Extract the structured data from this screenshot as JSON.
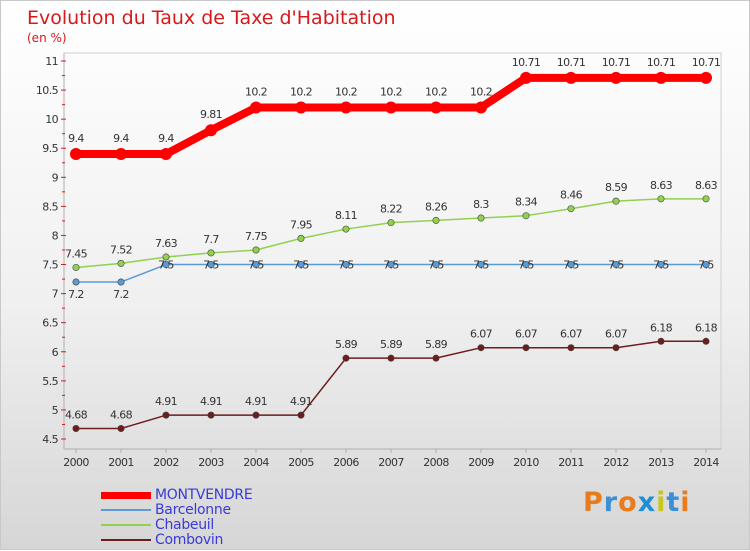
{
  "title": "Evolution du Taux de Taxe d'Habitation",
  "unit": "(en %)",
  "logo": {
    "text": "Proxiti",
    "colors": [
      "#e87b1e",
      "#3a8fd6",
      "#e87b1e",
      "#1e8fd6",
      "#c7c71e",
      "#3a8fd6",
      "#e87b1e"
    ]
  },
  "chart_data": {
    "type": "line",
    "x": [
      "2000",
      "2001",
      "2002",
      "2003",
      "2004",
      "2005",
      "2006",
      "2007",
      "2008",
      "2009",
      "2010",
      "2011",
      "2012",
      "2013",
      "2014"
    ],
    "ylim": [
      4.5,
      11
    ],
    "yticks": [
      "4.5",
      "5",
      "5.5",
      "6",
      "6.5",
      "7",
      "7.5",
      "8",
      "8.5",
      "9",
      "9.5",
      "10",
      "10.5",
      "11"
    ],
    "legend_position": "bottom-left",
    "series": [
      {
        "name": "MONTVENDRE",
        "color": "#ff0000",
        "values": [
          9.4,
          9.4,
          9.4,
          9.81,
          10.2,
          10.2,
          10.2,
          10.2,
          10.2,
          10.2,
          10.71,
          10.71,
          10.71,
          10.71,
          10.71
        ],
        "labels": [
          "9.4",
          "9.4",
          "9.4",
          "9.81",
          "10.2",
          "10.2",
          "10.2",
          "10.2",
          "10.2",
          "10.2",
          "10.71",
          "10.71",
          "10.71",
          "10.71",
          "10.71"
        ]
      },
      {
        "name": "Barcelonne",
        "color": "#5b9bd5",
        "values": [
          7.2,
          7.2,
          7.5,
          7.5,
          7.5,
          7.5,
          7.5,
          7.5,
          7.5,
          7.5,
          7.5,
          7.5,
          7.5,
          7.5,
          7.5
        ],
        "labels": [
          "7.2",
          "7.2",
          "7.5",
          "7.5",
          "7.5",
          "7.5",
          "7.5",
          "7.5",
          "7.5",
          "7.5",
          "7.5",
          "7.5",
          "7.5",
          "7.5",
          "7.5"
        ]
      },
      {
        "name": "Chabeuil",
        "color": "#92d050",
        "values": [
          7.45,
          7.52,
          7.63,
          7.7,
          7.75,
          7.95,
          8.11,
          8.22,
          8.26,
          8.3,
          8.34,
          8.46,
          8.59,
          8.63,
          8.63
        ],
        "labels": [
          "7.45",
          "7.52",
          "7.63",
          "7.7",
          "7.75",
          "7.95",
          "8.11",
          "8.22",
          "8.26",
          "8.3",
          "8.34",
          "8.46",
          "8.59",
          "8.63",
          "8.63"
        ]
      },
      {
        "name": "Combovin",
        "color": "#6e1c1c",
        "values": [
          4.68,
          4.68,
          4.91,
          4.91,
          4.91,
          4.91,
          5.89,
          5.89,
          5.89,
          6.07,
          6.07,
          6.07,
          6.07,
          6.18,
          6.18
        ],
        "labels": [
          "4.68",
          "4.68",
          "4.91",
          "4.91",
          "4.91",
          "4.91",
          "5.89",
          "5.89",
          "5.89",
          "6.07",
          "6.07",
          "6.07",
          "6.07",
          "6.18",
          "6.18"
        ]
      }
    ]
  }
}
